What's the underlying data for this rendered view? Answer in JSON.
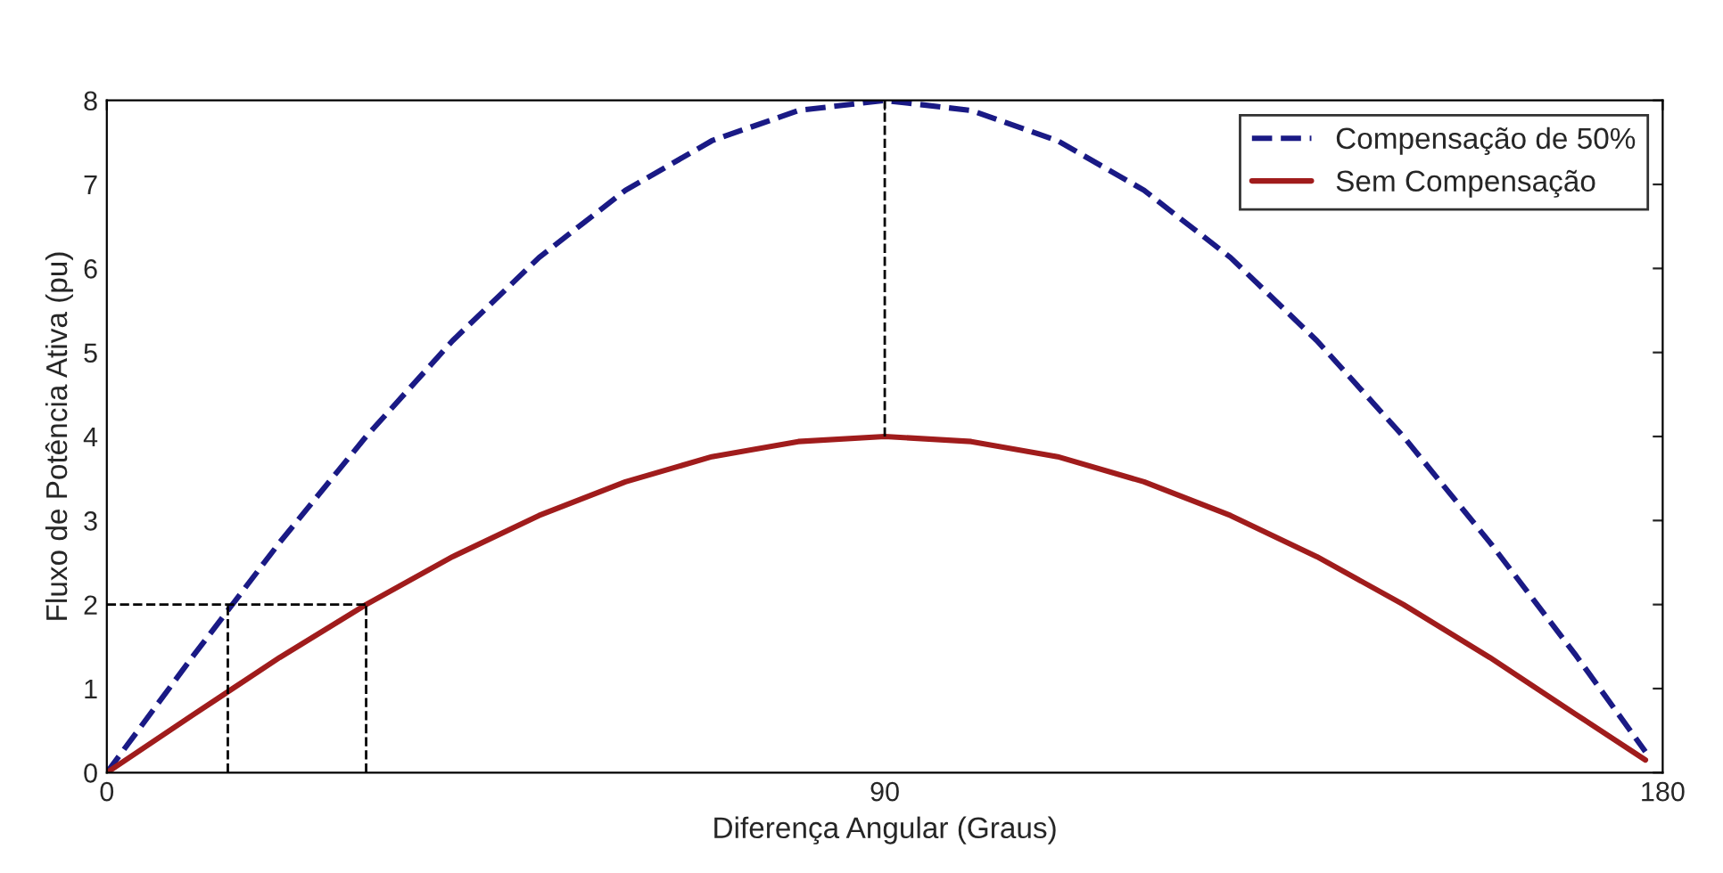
{
  "chart_data": {
    "type": "line",
    "xlabel": "Diferença Angular (Graus)",
    "ylabel": "Fluxo de Potência Ativa (pu)",
    "xlim": [
      0,
      180
    ],
    "ylim": [
      0,
      8
    ],
    "xticks": [
      0,
      90,
      180
    ],
    "yticks": [
      0,
      1,
      2,
      3,
      4,
      5,
      6,
      7,
      8
    ],
    "grid": false,
    "legend": "top right",
    "marker": "none",
    "series": [
      {
        "name": "Compensação de 50%",
        "color": "#1a1a85",
        "line_style": "dashed",
        "x": [
          0,
          10,
          20,
          30,
          40,
          50,
          60,
          70,
          80,
          90,
          100,
          110,
          120,
          130,
          140,
          150,
          160,
          170,
          178
        ],
        "values": [
          0,
          1.39,
          2.74,
          4.0,
          5.14,
          6.13,
          6.93,
          7.52,
          7.88,
          8.0,
          7.88,
          7.52,
          6.93,
          6.13,
          5.14,
          4.0,
          2.74,
          1.39,
          0.25
        ]
      },
      {
        "name": "Sem Compensação",
        "color": "#a01c1c",
        "line_style": "solid",
        "x": [
          0,
          10,
          20,
          30,
          40,
          50,
          60,
          70,
          80,
          90,
          100,
          110,
          120,
          130,
          140,
          150,
          160,
          170,
          178
        ],
        "values": [
          0,
          0.69,
          1.37,
          2.0,
          2.57,
          3.06,
          3.46,
          3.76,
          3.94,
          4.0,
          3.94,
          3.76,
          3.46,
          3.06,
          2.57,
          2.0,
          1.37,
          0.69,
          0.15
        ]
      },
      {
        "color": "#000000",
        "line_style": "dashed",
        "x": [
          90,
          90
        ],
        "values": [
          4,
          8
        ]
      },
      {
        "color": "#000000",
        "line_style": "dashed",
        "x": [
          0,
          30
        ],
        "values": [
          2,
          2
        ]
      },
      {
        "color": "#000000",
        "line_style": "dashed",
        "x": [
          14,
          14
        ],
        "values": [
          0,
          2
        ]
      },
      {
        "color": "#000000",
        "line_style": "dashed",
        "x": [
          30,
          30
        ],
        "values": [
          0,
          2
        ]
      }
    ]
  }
}
